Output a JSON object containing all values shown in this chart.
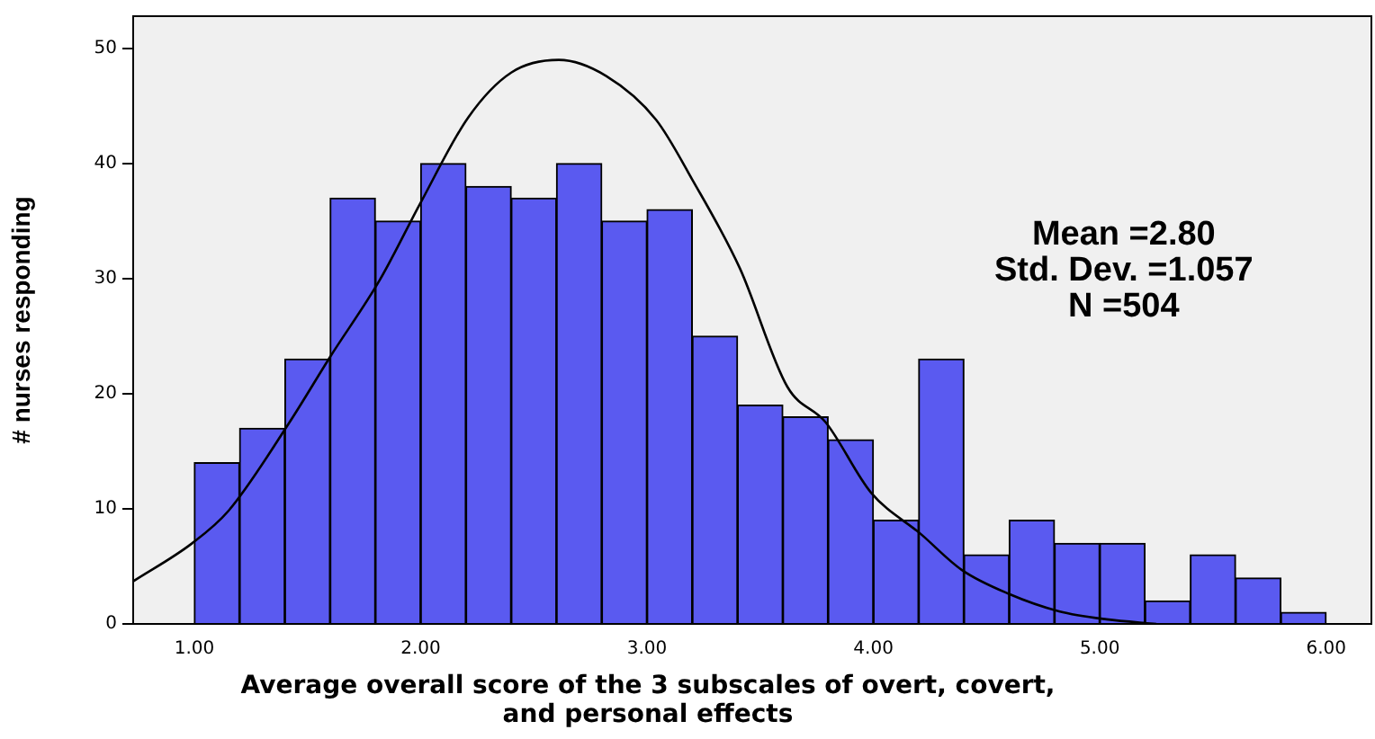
{
  "chart_data": {
    "type": "histogram",
    "xlabel": "Average overall score of the 3 subscales of overt, covert, and personal effects",
    "ylabel": "# nurses responding",
    "annotations": [
      "Mean =2.80",
      "Std. Dev. =1.057",
      "N =504"
    ],
    "xlim": [
      0.73,
      6.2
    ],
    "ylim": [
      0,
      52.8
    ],
    "xticks": [
      {
        "value": 1,
        "label": "1.00"
      },
      {
        "value": 2,
        "label": "2.00"
      },
      {
        "value": 3,
        "label": "3.00"
      },
      {
        "value": 4,
        "label": "4.00"
      },
      {
        "value": 5,
        "label": "5.00"
      },
      {
        "value": 6,
        "label": "6.00"
      }
    ],
    "yticks": [
      0,
      10,
      20,
      30,
      40,
      50
    ],
    "grid": false,
    "legend": false,
    "series": [
      {
        "color": "#5a5af0",
        "bins": [
          1.0,
          1.2,
          1.4,
          1.6,
          1.8,
          2.0,
          2.2,
          2.4,
          2.6,
          2.8,
          3.0,
          3.2,
          3.4,
          3.6,
          3.8,
          4.0,
          4.2,
          4.4,
          4.6,
          4.8,
          5.0,
          5.2,
          5.4,
          5.6,
          5.8,
          6.0
        ],
        "values": [
          14,
          17,
          23,
          37,
          35,
          40,
          38,
          37,
          40,
          35,
          36,
          25,
          19,
          18,
          16,
          9,
          23,
          6,
          9,
          7,
          7,
          2,
          6,
          4,
          1
        ]
      },
      {
        "type": "line",
        "color": "#000000",
        "marker": "none",
        "x": [
          0.73,
          0.99,
          1.15,
          1.42,
          1.6,
          1.82,
          2.0,
          2.21,
          2.4,
          2.61,
          2.82,
          3.04,
          3.2,
          3.41,
          3.62,
          3.79,
          3.99,
          4.21,
          4.39,
          4.6,
          4.82,
          5.03,
          5.25
        ],
        "values": [
          3.7,
          7.0,
          9.8,
          17.5,
          23.2,
          29.9,
          36.6,
          44.0,
          47.9,
          49.0,
          47.6,
          43.8,
          38.6,
          30.9,
          20.6,
          17.5,
          11.4,
          7.8,
          4.7,
          2.6,
          1.1,
          0.4,
          0
        ]
      }
    ]
  }
}
